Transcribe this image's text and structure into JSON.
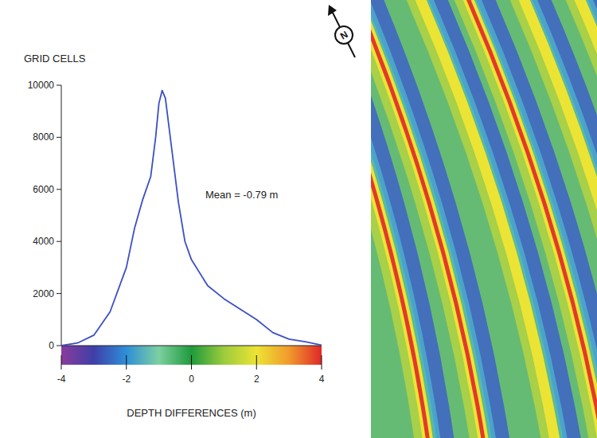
{
  "chart_data": {
    "type": "line",
    "y_label": "GRID CELLS",
    "x_label": "DEPTH DIFFERENCES (m)",
    "annotation": "Mean = -0.79 m",
    "x": [
      -4,
      -3.5,
      -3,
      -2.5,
      -2,
      -1.75,
      -1.5,
      -1.25,
      -1.1,
      -1,
      -0.9,
      -0.8,
      -0.6,
      -0.4,
      -0.2,
      0,
      0.5,
      1,
      1.5,
      2,
      2.5,
      3,
      3.5,
      4
    ],
    "values": [
      0,
      100,
      400,
      1300,
      3000,
      4500,
      5600,
      6500,
      8000,
      9300,
      9800,
      9500,
      7500,
      5500,
      4000,
      3300,
      2300,
      1800,
      1400,
      1000,
      500,
      250,
      150,
      20
    ],
    "color": "#3c4fc4",
    "xlim": [
      -4,
      4
    ],
    "xticks": [
      -4,
      -2,
      0,
      2,
      4
    ],
    "ylim": [
      0,
      10000
    ],
    "yticks": [
      0,
      2000,
      4000,
      6000,
      8000,
      10000
    ],
    "colorbar": {
      "range": [
        -4,
        4
      ],
      "colors": [
        "#8a3c9c",
        "#3f3fa8",
        "#2f8fd8",
        "#7cd0a0",
        "#1f9a3c",
        "#9ccc3c",
        "#ece434",
        "#f09a2c",
        "#e02828"
      ]
    }
  },
  "map": {
    "north_label": "N"
  }
}
